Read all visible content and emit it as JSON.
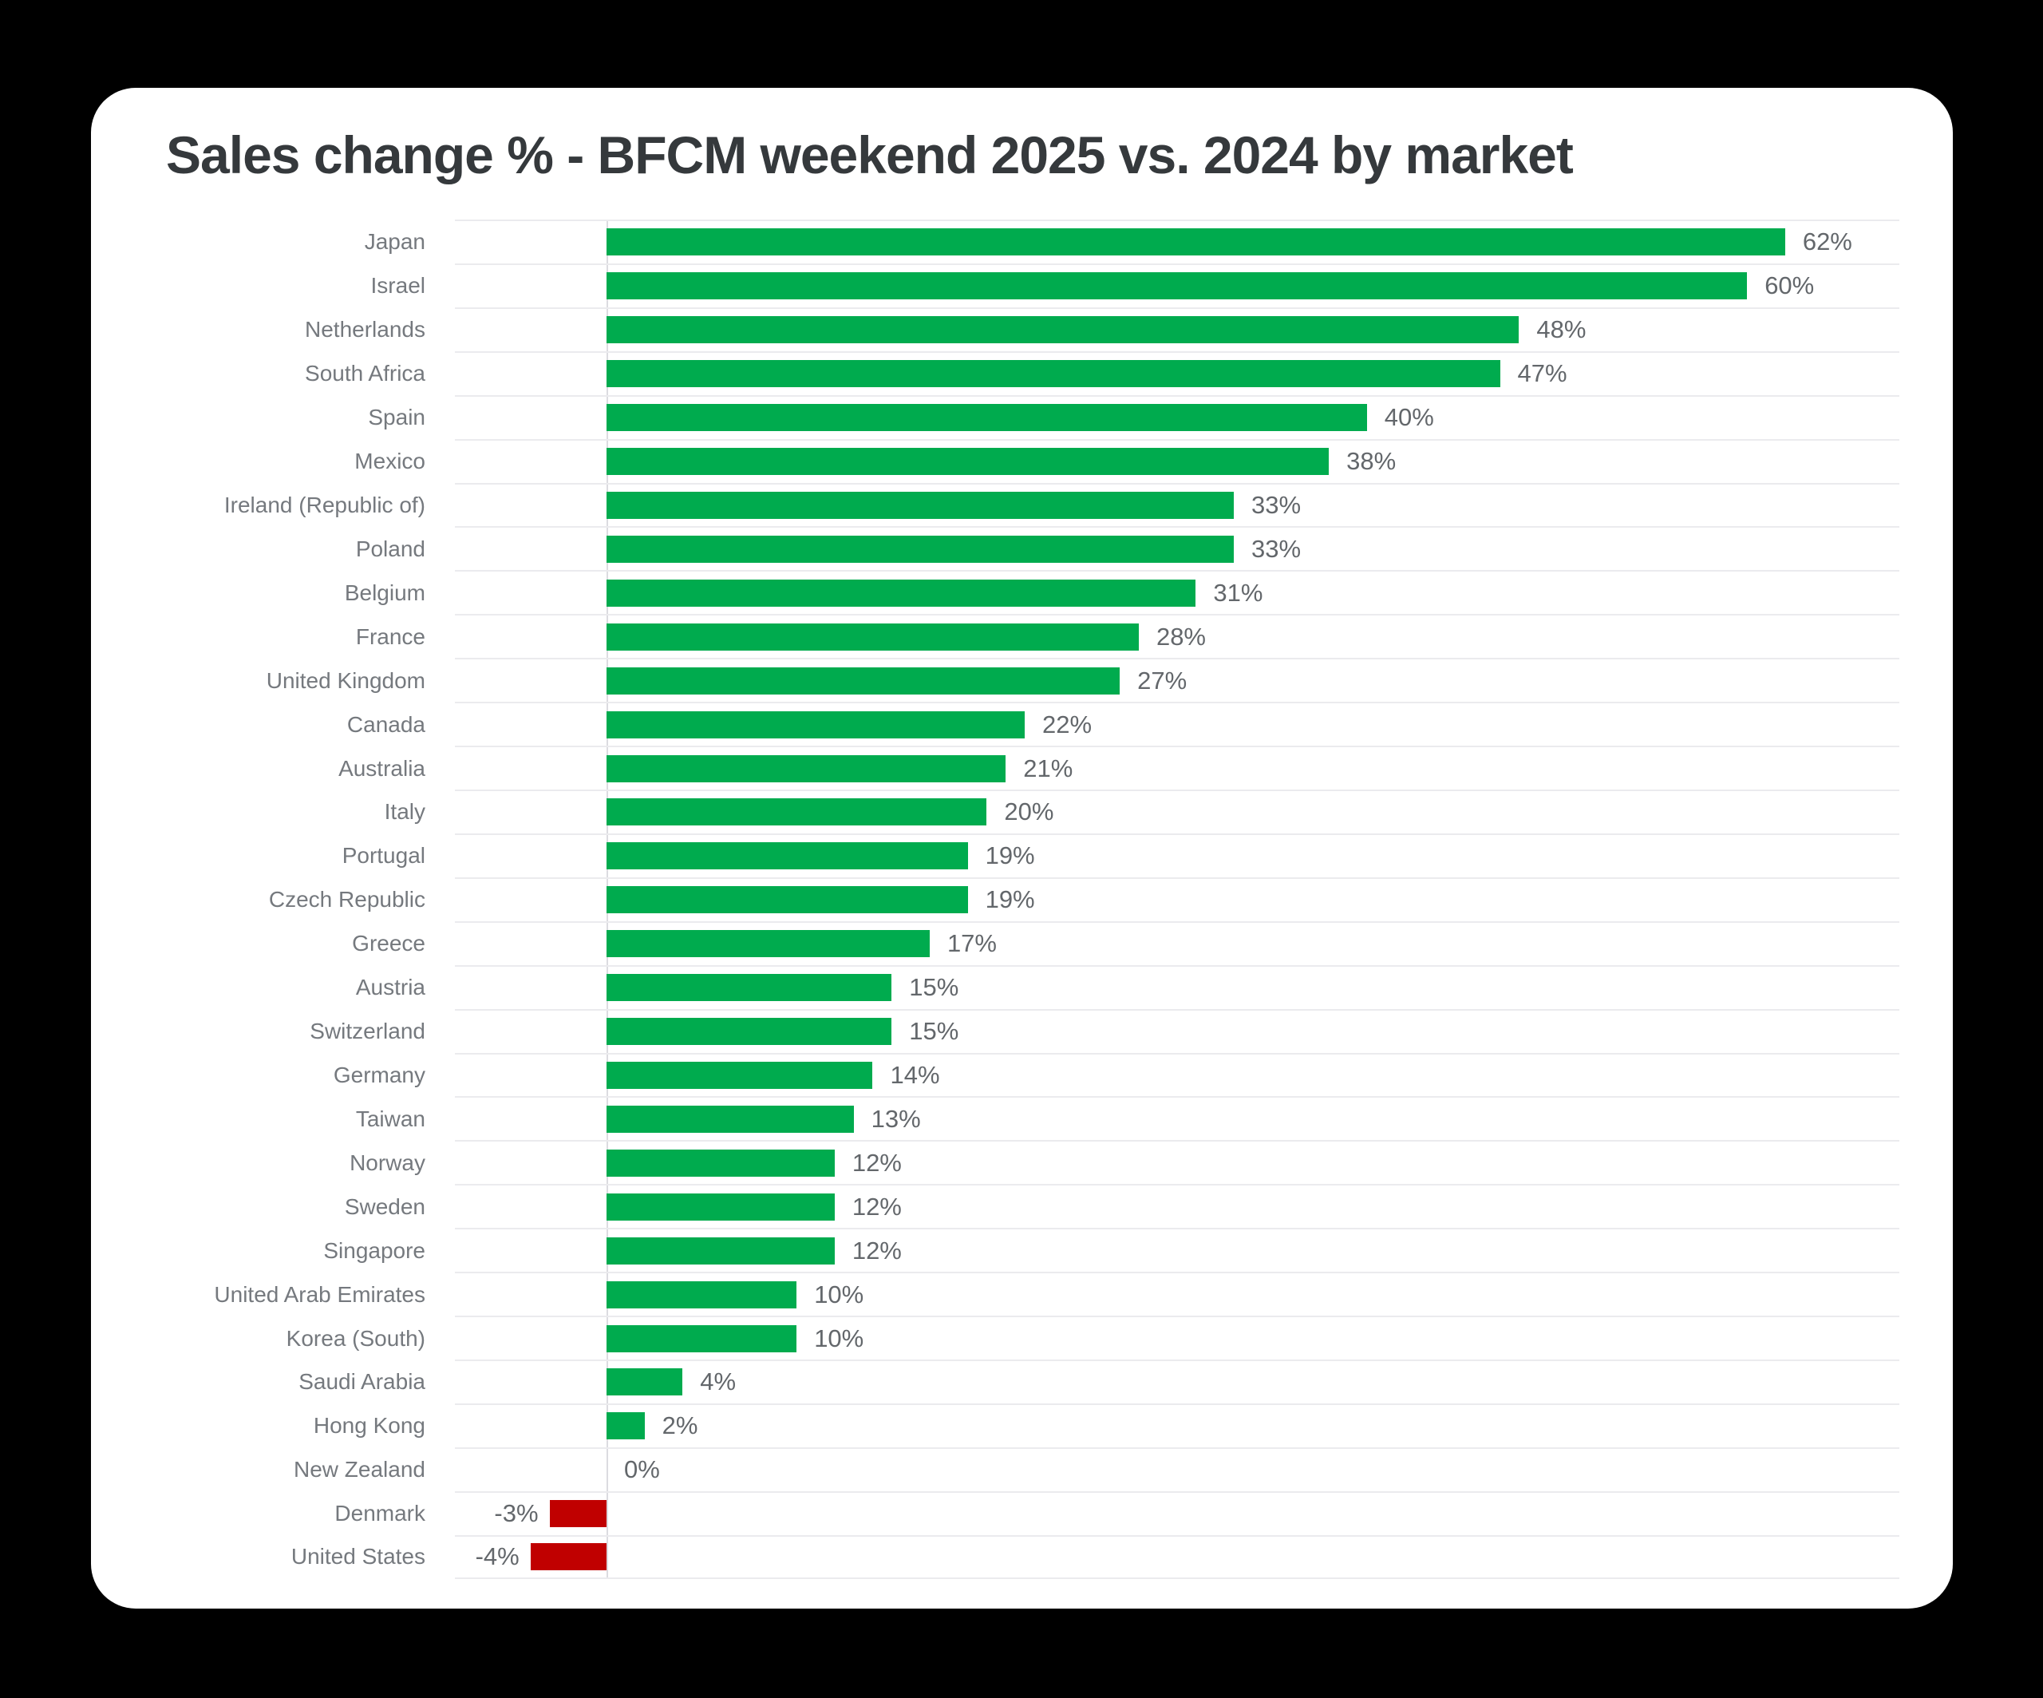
{
  "chart_data": {
    "type": "bar",
    "orientation": "horizontal",
    "title": "Sales change % - BFCM weekend 2025 vs. 2024 by market",
    "categories": [
      "Japan",
      "Israel",
      "Netherlands",
      "South Africa",
      "Spain",
      "Mexico",
      "Ireland (Republic of)",
      "Poland",
      "Belgium",
      "France",
      "United Kingdom",
      "Canada",
      "Australia",
      "Italy",
      "Portugal",
      "Czech Republic",
      "Greece",
      "Austria",
      "Switzerland",
      "Germany",
      "Taiwan",
      "Norway",
      "Sweden",
      "Singapore",
      "United Arab Emirates",
      "Korea (South)",
      "Saudi Arabia",
      "Hong Kong",
      "New Zealand",
      "Denmark",
      "United States"
    ],
    "values": [
      62,
      60,
      48,
      47,
      40,
      38,
      33,
      33,
      31,
      28,
      27,
      22,
      21,
      20,
      19,
      19,
      17,
      15,
      15,
      14,
      13,
      12,
      12,
      12,
      10,
      10,
      4,
      2,
      0,
      -3,
      -4
    ],
    "value_suffix": "%",
    "xlim": [
      -8,
      68
    ],
    "gridlines": "row-separators",
    "legend": "none",
    "colors": {
      "positive": "#00AB4E",
      "negative": "#C00000"
    }
  },
  "style": {
    "page_background": "#000000",
    "card_background": "#ffffff",
    "title_color": "#35393c",
    "category_label_color": "#75797e",
    "value_label_color": "#63676b",
    "gridline_color": "#ebebee",
    "axis_line_color": "#dcdce0"
  }
}
